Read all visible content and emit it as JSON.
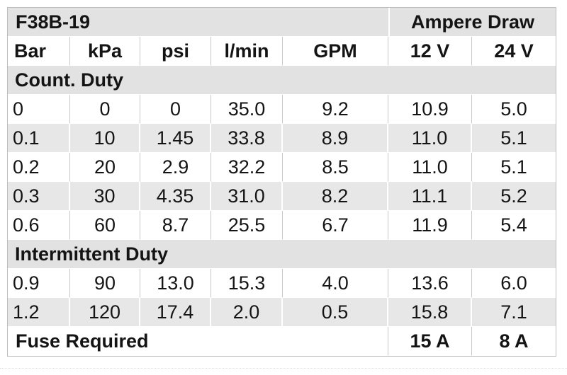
{
  "chart_data": {
    "type": "table",
    "title": "F38B-19",
    "header_group_label": "Ampere Draw",
    "columns": [
      "Bar",
      "kPa",
      "psi",
      "l/min",
      "GPM",
      "12 V",
      "24 V"
    ],
    "sections": [
      {
        "label": "Count. Duty",
        "rows": [
          [
            "0",
            "0",
            "0",
            "35.0",
            "9.2",
            "10.9",
            "5.0"
          ],
          [
            "0.1",
            "10",
            "1.45",
            "33.8",
            "8.9",
            "11.0",
            "5.1"
          ],
          [
            "0.2",
            "20",
            "2.9",
            "32.2",
            "8.5",
            "11.0",
            "5.1"
          ],
          [
            "0.3",
            "30",
            "4.35",
            "31.0",
            "8.2",
            "11.1",
            "5.2"
          ],
          [
            "0.6",
            "60",
            "8.7",
            "25.5",
            "6.7",
            "11.9",
            "5.4"
          ]
        ]
      },
      {
        "label": "Intermittent Duty",
        "rows": [
          [
            "0.9",
            "90",
            "13.0",
            "15.3",
            "4.0",
            "13.6",
            "6.0"
          ],
          [
            "1.2",
            "120",
            "17.4",
            "2.0",
            "0.5",
            "15.8",
            "7.1"
          ]
        ]
      }
    ],
    "footer": {
      "label": "Fuse Required",
      "fuse_12v": "15 A",
      "fuse_24v": "8 A"
    }
  },
  "colors": {
    "band_gray": "#e2e2e2",
    "stripe_gray": "#e7e7e7",
    "divider_gray": "#c9c9c9",
    "outer_border_gray": "#bdbdbd",
    "text": "#141414"
  }
}
